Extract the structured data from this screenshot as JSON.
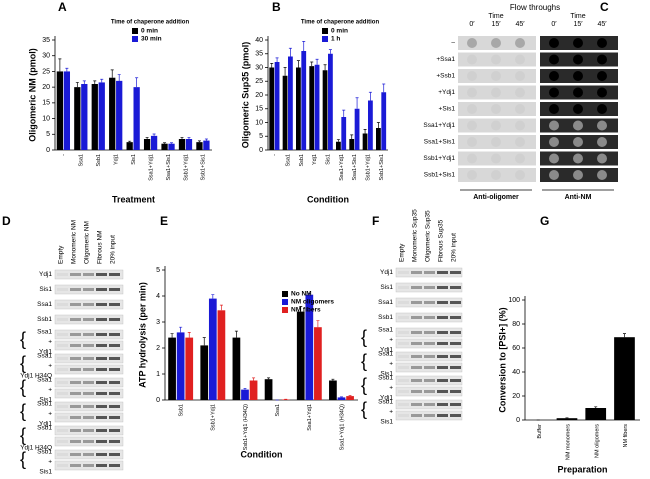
{
  "chart_data": [
    {
      "type": "bar",
      "panel": "A",
      "ylabel": "Oligomeric NM (pmol)",
      "xlabel": "Treatment",
      "legend_title": "Time of chaperone addition",
      "categories": [
        "-",
        "Ssa1",
        "Ssb1",
        "Ydj1",
        "Sis1",
        "Ssa1+Ydj1",
        "Ssa1+Sis1",
        "Ssb1+Ydj1",
        "Ssb1+Sis1"
      ],
      "series": [
        {
          "name": "0 min",
          "color": "#000000",
          "values": [
            25,
            20,
            21,
            23,
            2.5,
            3.5,
            2,
            3.5,
            2.5
          ],
          "errors": [
            4,
            1.5,
            1,
            2.5,
            0.3,
            0.5,
            0.3,
            0.5,
            0.4
          ]
        },
        {
          "name": "30 min",
          "color": "#1a1ad6",
          "values": [
            25,
            21,
            21.5,
            22,
            20,
            4.5,
            2,
            3.5,
            3
          ],
          "errors": [
            1,
            1,
            1,
            2,
            3,
            0.6,
            0.3,
            0.5,
            0.5
          ]
        }
      ],
      "ylim": [
        0,
        35
      ],
      "yticks": [
        0,
        5,
        10,
        15,
        20,
        25,
        30,
        35
      ]
    },
    {
      "type": "bar",
      "panel": "B",
      "ylabel": "Oligomeric Sup35 (pmol)",
      "xlabel": "Condition",
      "legend_title": "Time of chaperone addition",
      "categories": [
        "-",
        "Ssa1",
        "Ssb1",
        "Ydj1",
        "Sis1",
        "Ssa1+Ydj1",
        "Ssa1+Sis1",
        "Ssb1+Ydj1",
        "Ssb1+Sis1"
      ],
      "series": [
        {
          "name": "0 min",
          "color": "#000000",
          "values": [
            30,
            27,
            30,
            30.5,
            29,
            3,
            4,
            6,
            8
          ],
          "errors": [
            1.5,
            3,
            2.5,
            1.5,
            2,
            0.8,
            1.5,
            1.5,
            2
          ]
        },
        {
          "name": "1 h",
          "color": "#1a1ad6",
          "values": [
            32,
            34,
            36,
            31,
            35,
            12,
            15,
            18,
            21
          ],
          "errors": [
            1.5,
            3,
            3.5,
            2,
            1.5,
            2.5,
            4,
            3,
            3
          ]
        }
      ],
      "ylim": [
        0,
        40
      ],
      "yticks": [
        0,
        5,
        10,
        15,
        20,
        25,
        30,
        35,
        40
      ]
    },
    {
      "type": "bar",
      "panel": "E",
      "ylabel": "ATP hydrolysis (per min)",
      "xlabel": "Condition",
      "categories": [
        "Ssb1",
        "Ssb1+Ydj1",
        "Ssb1+Ydj1 (H34Q)",
        "Ssa1",
        "Ssa1+Ydj1",
        "Ssa1+Ydj1 (H34Q)"
      ],
      "series": [
        {
          "name": "No NM",
          "color": "#000000",
          "values": [
            2.4,
            2.1,
            2.4,
            0.8,
            3.4,
            0.75
          ],
          "errors": [
            0.15,
            0.3,
            0.25,
            0.05,
            0.2,
            0.05
          ]
        },
        {
          "name": "NM oligomers",
          "color": "#1a1ad6",
          "values": [
            2.6,
            3.9,
            0.4,
            0,
            4.05,
            0.1
          ],
          "errors": [
            0.2,
            0.15,
            0.05,
            0,
            0.05,
            0.02
          ]
        },
        {
          "name": "NM fibers",
          "color": "#e02020",
          "values": [
            2.4,
            3.45,
            0.75,
            0.02,
            2.8,
            0.15
          ],
          "errors": [
            0.2,
            0.2,
            0.1,
            0.01,
            0.25,
            0.03
          ]
        }
      ],
      "ylim": [
        0,
        5
      ],
      "yticks": [
        0,
        1,
        2,
        3,
        4,
        5
      ]
    },
    {
      "type": "bar",
      "panel": "G",
      "ylabel": "Conversion to [PSI+] (%)",
      "xlabel": "Preparation",
      "categories": [
        "Buffer",
        "NM monomers",
        "NM oligomers",
        "NM fibers"
      ],
      "values": [
        0,
        1.5,
        10,
        69
      ],
      "errors": [
        0,
        0.3,
        1,
        3
      ],
      "color": "#000000",
      "ylim": [
        0,
        100
      ],
      "yticks": [
        0,
        20,
        40,
        60,
        80,
        100
      ]
    }
  ],
  "dot_blot": {
    "panel": "C",
    "header": "Flow throughs",
    "time_label": "Time",
    "times": [
      "0′",
      "15′",
      "45′"
    ],
    "rows": [
      "–",
      "+Ssa1",
      "+Ssb1",
      "+Ydj1",
      "+Sis1",
      "Ssa1+Ydj1",
      "Ssa1+Sis1",
      "Ssb1+Ydj1",
      "Ssb1+Sis1"
    ],
    "antibodies": [
      "Anti-oligomer",
      "Anti-NM"
    ]
  },
  "pulldowns": [
    {
      "panel": "D",
      "columns": [
        "Empty",
        "Monomeric NM",
        "Oligomeric NM",
        "Fibrous NM",
        "20% input"
      ],
      "groups": [
        [
          "Ydj1"
        ],
        [
          "Sis1"
        ],
        [
          "Ssa1"
        ],
        [
          "Ssb1"
        ],
        [
          "Ssa1",
          "+",
          "Ydj1"
        ],
        [
          "Ssa1",
          "+",
          "Ydj1 H34Q"
        ],
        [
          "Ssa1",
          "+",
          "Sis1"
        ],
        [
          "Ssb1",
          "+",
          "Ydj1"
        ],
        [
          "Ssb1",
          "Ydj1 H34Q"
        ],
        [
          "Ssb1",
          "+",
          "Sis1"
        ]
      ]
    },
    {
      "panel": "F",
      "columns": [
        "Empty",
        "Monomeric Sup35",
        "Oligomeric Sup35",
        "Fibrous Sup35",
        "20% input"
      ],
      "groups": [
        [
          "Ydj1"
        ],
        [
          "Sis1"
        ],
        [
          "Ssa1"
        ],
        [
          "Ssb1"
        ],
        [
          "Ssa1",
          "+",
          "Ydj1"
        ],
        [
          "Ssa1",
          "+",
          "Sis1"
        ],
        [
          "Ssb1",
          "+",
          "Ydj1"
        ],
        [
          "Ssb1",
          "+",
          "Sis1"
        ]
      ]
    }
  ]
}
